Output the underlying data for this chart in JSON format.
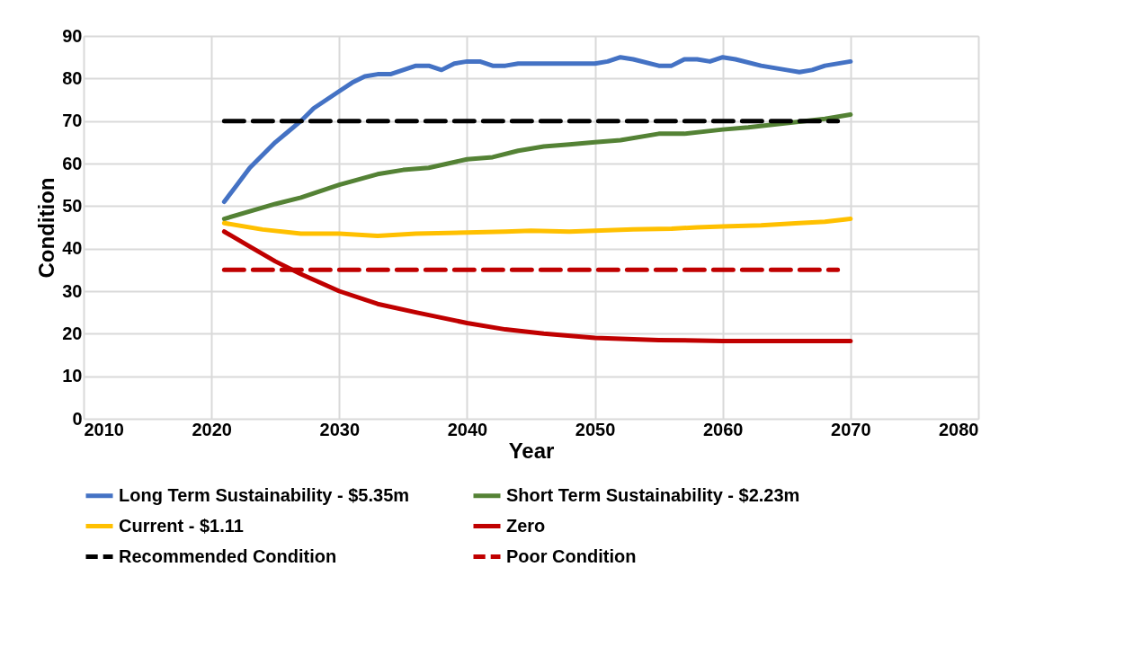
{
  "chart_data": {
    "type": "line",
    "xlabel": "Year",
    "ylabel": "Condition",
    "xlim": [
      2010,
      2080
    ],
    "xticks": [
      2010,
      2020,
      2030,
      2040,
      2050,
      2060,
      2070,
      2080
    ],
    "ylim": [
      0,
      90
    ],
    "yticks": [
      0,
      10,
      20,
      30,
      40,
      50,
      60,
      70,
      80,
      90
    ],
    "grid": true,
    "legend": "bottom",
    "marker": "none",
    "series": [
      {
        "name": "Long Term Sustainability - $5.35m",
        "color": "#4472c4",
        "x": [
          2021,
          2022,
          2023,
          2024,
          2025,
          2026,
          2027,
          2028,
          2029,
          2030,
          2031,
          2032,
          2033,
          2034,
          2035,
          2036,
          2037,
          2038,
          2039,
          2040,
          2041,
          2042,
          2043,
          2044,
          2046,
          2048,
          2050,
          2051,
          2052,
          2053,
          2055,
          2056,
          2057,
          2058,
          2059,
          2060,
          2061,
          2063,
          2065,
          2066,
          2067,
          2068,
          2070
        ],
        "values": [
          51,
          55,
          59,
          62,
          65,
          67.5,
          70,
          73,
          75,
          77,
          79,
          80.5,
          81,
          81,
          82,
          83,
          83,
          82,
          83.5,
          84,
          84,
          83,
          83,
          83.5,
          83.5,
          83.5,
          83.5,
          84,
          85,
          84.5,
          83,
          83,
          84.5,
          84.5,
          84,
          85,
          84.5,
          83,
          82,
          81.5,
          82,
          83,
          84
        ]
      },
      {
        "name": "Short Term Sustainability - $2.23m",
        "color": "#548235",
        "x": [
          2021,
          2025,
          2027,
          2030,
          2033,
          2035,
          2037,
          2040,
          2042,
          2044,
          2046,
          2048,
          2050,
          2052,
          2055,
          2057,
          2060,
          2062,
          2065,
          2068,
          2070
        ],
        "values": [
          47,
          50.5,
          52,
          55,
          57.5,
          58.5,
          59,
          61,
          61.5,
          63,
          64,
          64.5,
          65,
          65.5,
          67,
          67,
          68,
          68.5,
          69.5,
          70.5,
          71.5
        ]
      },
      {
        "name": "Current - $1.11",
        "color": "#ffc000",
        "x": [
          2021,
          2024,
          2027,
          2030,
          2033,
          2036,
          2040,
          2043,
          2045,
          2048,
          2050,
          2053,
          2056,
          2058,
          2060,
          2063,
          2066,
          2068,
          2070
        ],
        "values": [
          46,
          44.5,
          43.5,
          43.5,
          43,
          43.5,
          43.8,
          44,
          44.2,
          44,
          44.2,
          44.5,
          44.7,
          45,
          45.2,
          45.5,
          46,
          46.3,
          47
        ]
      },
      {
        "name": "Zero",
        "color": "#c00000",
        "x": [
          2021,
          2023,
          2025,
          2027,
          2030,
          2033,
          2036,
          2040,
          2043,
          2046,
          2050,
          2055,
          2060,
          2065,
          2070
        ],
        "values": [
          44,
          40.5,
          37,
          34,
          30,
          27,
          25,
          22.5,
          21,
          20,
          19,
          18.5,
          18.3,
          18.3,
          18.3
        ]
      },
      {
        "name": "Recommended Condition",
        "color": "#000000",
        "line_style": "dashed",
        "x": [
          2021,
          2069
        ],
        "values": [
          70,
          70
        ]
      },
      {
        "name": "Poor Condition",
        "color": "#c00000",
        "line_style": "dashed",
        "x": [
          2021,
          2069
        ],
        "values": [
          35,
          35
        ]
      }
    ]
  }
}
